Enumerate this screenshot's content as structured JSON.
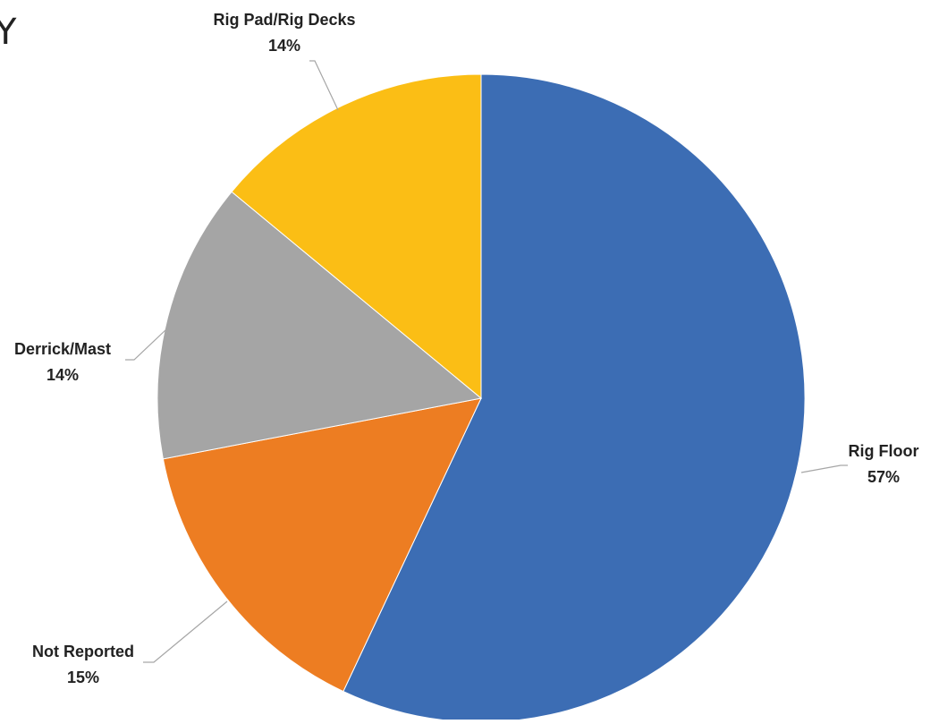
{
  "page": {
    "corner_glyph": "Y"
  },
  "chart_data": {
    "type": "pie",
    "title": "",
    "slices": [
      {
        "label": "Rig Floor",
        "value": 57,
        "pct_label": "57%",
        "color": "#3C6DB4"
      },
      {
        "label": "Not Reported",
        "value": 15,
        "pct_label": "15%",
        "color": "#ED7D22"
      },
      {
        "label": "Derrick/Mast",
        "value": 14,
        "pct_label": "14%",
        "color": "#A5A5A5"
      },
      {
        "label": "Rig Pad/Rig Decks",
        "value": 14,
        "pct_label": "14%",
        "color": "#FBBE15"
      }
    ],
    "start": "12 o'clock",
    "direction": "clockwise",
    "labels": "outside with leader lines",
    "legend": "none"
  }
}
